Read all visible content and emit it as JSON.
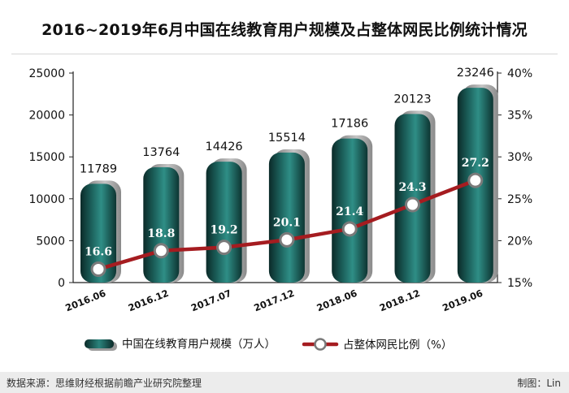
{
  "chart_data": {
    "type": "bar+line",
    "title": "2016~2019年6月中国在线教育用户规模及占整体网民比例统计情况",
    "categories": [
      "2016.06",
      "2016.12",
      "2017.07",
      "2017.12",
      "2018.06",
      "2018.12",
      "2019.06"
    ],
    "series": [
      {
        "name": "中国在线教育用户规模（万人）",
        "type": "bar",
        "axis": "left",
        "values": [
          11789,
          13764,
          14426,
          15514,
          17186,
          20123,
          23246
        ]
      },
      {
        "name": "占整体网民比例（%）",
        "type": "line",
        "axis": "right",
        "values": [
          16.6,
          18.8,
          19.2,
          20.1,
          21.4,
          24.3,
          27.2
        ]
      }
    ],
    "y_left": {
      "min": 0,
      "max": 25000,
      "ticks": [
        "0",
        "5000",
        "10000",
        "15000",
        "20000",
        "25000"
      ]
    },
    "y_right": {
      "min": 15,
      "max": 40,
      "ticks": [
        "15%",
        "20%",
        "25%",
        "30%",
        "35%",
        "40%"
      ]
    },
    "legend_position": "bottom",
    "colors": {
      "bar_dark": "#0c2f2d",
      "bar_light": "#2d8a83",
      "bar_shadow": "#9a9a9a",
      "line": "#a51c20",
      "marker_fill": "#ffffff",
      "marker_stroke": "#7a7a7a"
    }
  },
  "footer": {
    "source": "数据来源：思维财经根据前瞻产业研究院整理",
    "author": "制图：Lin"
  }
}
